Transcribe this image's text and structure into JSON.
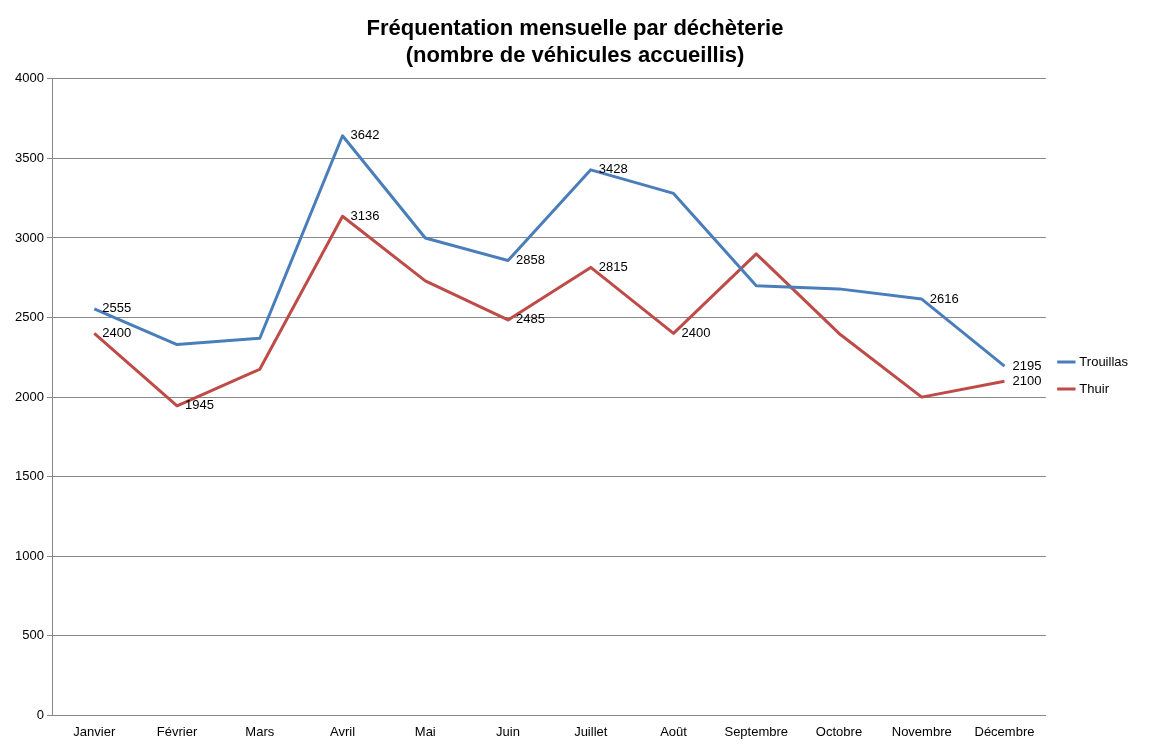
{
  "chart_data": {
    "type": "line",
    "title": "Fréquentation mensuelle par déchèterie\n(nombre de véhicules accueillis)",
    "categories": [
      "Janvier",
      "Février",
      "Mars",
      "Avril",
      "Mai",
      "Juin",
      "Juillet",
      "Août",
      "Septembre",
      "Octobre",
      "Novembre",
      "Décembre"
    ],
    "series": [
      {
        "name": "Trouillas",
        "color": "#4a7ebb",
        "values": [
          2555,
          2330,
          2370,
          3642,
          3000,
          2858,
          3428,
          3280,
          2700,
          2680,
          2616,
          2195
        ],
        "value_labels": [
          "2555",
          null,
          null,
          "3642",
          null,
          "2858",
          "3428",
          null,
          null,
          null,
          "2616",
          "2195"
        ]
      },
      {
        "name": "Thuir",
        "color": "#be4b48",
        "values": [
          2400,
          1945,
          2175,
          3136,
          2730,
          2485,
          2815,
          2400,
          2900,
          2400,
          2000,
          2100
        ],
        "value_labels": [
          "2400",
          "1945",
          null,
          "3136",
          null,
          "2485",
          "2815",
          "2400",
          null,
          null,
          null,
          "2100"
        ]
      }
    ],
    "ylim": [
      0,
      4000
    ],
    "yticks": [
      0,
      500,
      1000,
      1500,
      2000,
      2500,
      3000,
      3500,
      4000
    ],
    "grid": "y",
    "legend": "right",
    "line_style": "solid"
  }
}
